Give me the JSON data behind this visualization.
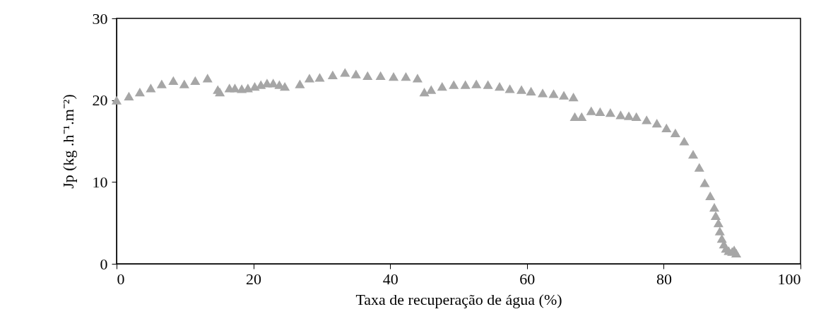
{
  "chart_data": {
    "type": "scatter",
    "xlabel": "Taxa de recuperação de água (%)",
    "ylabel": "Jp (kg .h⁻¹.m⁻²)",
    "marker": "triangle",
    "grid": false,
    "xlim": [
      0,
      100
    ],
    "xticks": [
      0,
      20,
      40,
      60,
      80,
      100
    ],
    "ylim": [
      0,
      30
    ],
    "yticks": [
      0,
      10,
      20,
      30
    ],
    "series": [
      {
        "color": "#a6a6a6",
        "x": [
          0,
          1.8,
          3.4,
          5,
          6.6,
          8.3,
          9.9,
          11.5,
          13.3,
          14.8,
          15.1,
          16.5,
          17.3,
          18.3,
          19.2,
          20.2,
          21.1,
          22,
          22.9,
          23.8,
          24.6,
          26.8,
          28.2,
          29.7,
          31.6,
          33.4,
          35,
          36.7,
          38.6,
          40.5,
          42.3,
          44,
          45,
          46,
          47.6,
          49.3,
          51,
          52.6,
          54.3,
          56,
          57.5,
          59.2,
          60.6,
          62.3,
          63.9,
          65.4,
          66.8,
          67,
          68,
          69.4,
          70.7,
          72.2,
          73.7,
          74.9,
          76,
          77.5,
          79,
          80.4,
          81.7,
          83,
          84.3,
          85.2,
          86,
          86.8,
          87.4,
          87.6,
          88,
          88.2,
          88.5,
          88.8,
          89.1,
          89.5,
          90,
          90.3,
          90.6
        ],
        "values": [
          20,
          20.5,
          21,
          21.5,
          22,
          22.4,
          22,
          22.4,
          22.7,
          21.3,
          21,
          21.5,
          21.5,
          21.4,
          21.5,
          21.7,
          21.9,
          22.1,
          22.1,
          21.9,
          21.7,
          22,
          22.7,
          22.8,
          23.1,
          23.4,
          23.2,
          23,
          23,
          22.9,
          22.9,
          22.7,
          21,
          21.3,
          21.7,
          21.9,
          21.9,
          22,
          21.9,
          21.7,
          21.4,
          21.3,
          21.1,
          20.9,
          20.8,
          20.6,
          20.4,
          18,
          18,
          18.7,
          18.6,
          18.5,
          18.2,
          18.1,
          18,
          17.6,
          17.2,
          16.6,
          16,
          15,
          13.4,
          11.8,
          9.9,
          8.3,
          6.9,
          5.9,
          5,
          4,
          3.1,
          2.4,
          1.9,
          1.6,
          1.5,
          1.7,
          1.3
        ]
      }
    ]
  }
}
